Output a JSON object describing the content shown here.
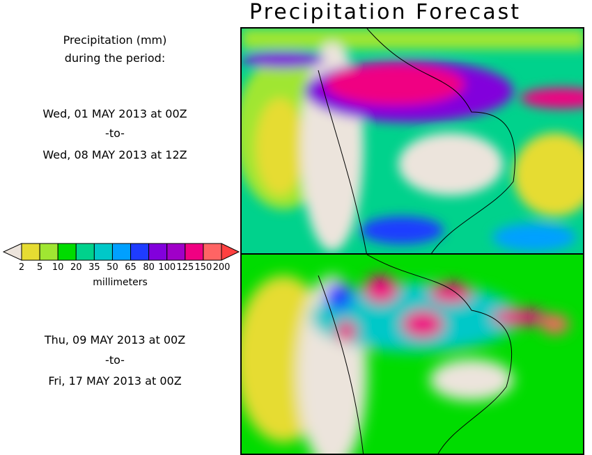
{
  "title": "Precipitation Forecast",
  "header": {
    "line1": "Precipitation (mm)",
    "line2": "during the period:"
  },
  "periods": [
    {
      "start": "Wed, 01 MAY 2013 at 00Z",
      "sep": "-to-",
      "end": "Wed, 08 MAY 2013 at 12Z"
    },
    {
      "start": "Thu, 09 MAY 2013 at 00Z",
      "sep": "-to-",
      "end": "Fri, 17 MAY 2013 at 00Z"
    }
  ],
  "colorbar": {
    "labels": [
      "2",
      "5",
      "10",
      "20",
      "35",
      "50",
      "65",
      "80",
      "100",
      "125",
      "150",
      "200"
    ],
    "colors": [
      "#e6dc32",
      "#a0e632",
      "#00dc00",
      "#00d28c",
      "#00c8c8",
      "#00a0ff",
      "#1e3cff",
      "#8200dc",
      "#a000c8",
      "#f00082",
      "#ff6464"
    ],
    "under_color": "#ece4dc",
    "over_color": "#ff4040",
    "units": "millimeters"
  },
  "map_colors": {
    "land_dry": "#ece4dc",
    "light": "#e6dc32",
    "green": "#00dc00",
    "teal": "#00c8c8",
    "heavy": "#a000c8",
    "extreme": "#f00082"
  }
}
